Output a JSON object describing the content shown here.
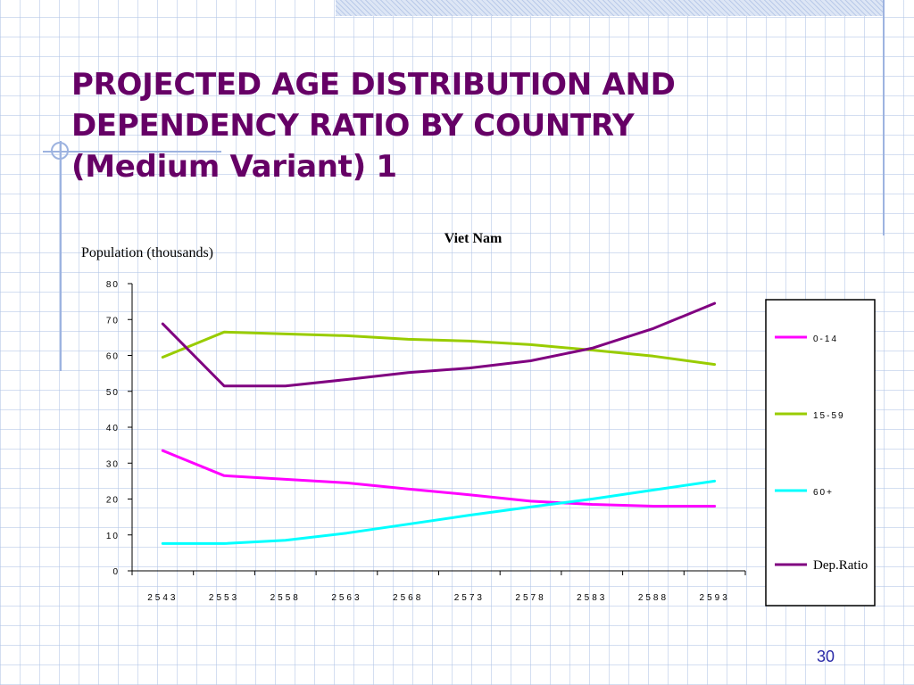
{
  "slide": {
    "title_lines": [
      "PROJECTED AGE DISTRIBUTION AND",
      "DEPENDENCY RATIO BY COUNTRY",
      "(Medium Variant) 1"
    ],
    "page_number": "30",
    "title_color": "#660066"
  },
  "chart_data": {
    "type": "line",
    "title": "Viet Nam",
    "xlabel": "",
    "ylabel": "Population (thousands)",
    "categories": [
      "2543",
      "2553",
      "2558",
      "2563",
      "2568",
      "2573",
      "2578",
      "2583",
      "2588",
      "2593"
    ],
    "ylim": [
      0,
      80
    ],
    "yticks": [
      "0",
      "10",
      "20",
      "30",
      "40",
      "50",
      "60",
      "70",
      "80"
    ],
    "grid": false,
    "legend_position": "right",
    "series": [
      {
        "name": "0-14",
        "color": "#ff00ff",
        "values": [
          33.5,
          26.5,
          25.5,
          24.5,
          22.8,
          21.2,
          19.4,
          18.5,
          18.0,
          18.0
        ]
      },
      {
        "name": "15-59",
        "color": "#99cc00",
        "values": [
          59.5,
          66.5,
          66.0,
          65.5,
          64.5,
          64.0,
          63.0,
          61.5,
          59.8,
          57.5
        ]
      },
      {
        "name": "60+",
        "color": "#00ffff",
        "values": [
          7.6,
          7.6,
          8.5,
          10.5,
          13.0,
          15.5,
          17.8,
          20.0,
          22.5,
          25.0
        ]
      },
      {
        "name": "Dep.Ratio",
        "color": "#800080",
        "values": [
          68.8,
          51.5,
          51.5,
          53.3,
          55.2,
          56.5,
          58.5,
          62.0,
          67.5,
          74.5
        ]
      }
    ]
  }
}
